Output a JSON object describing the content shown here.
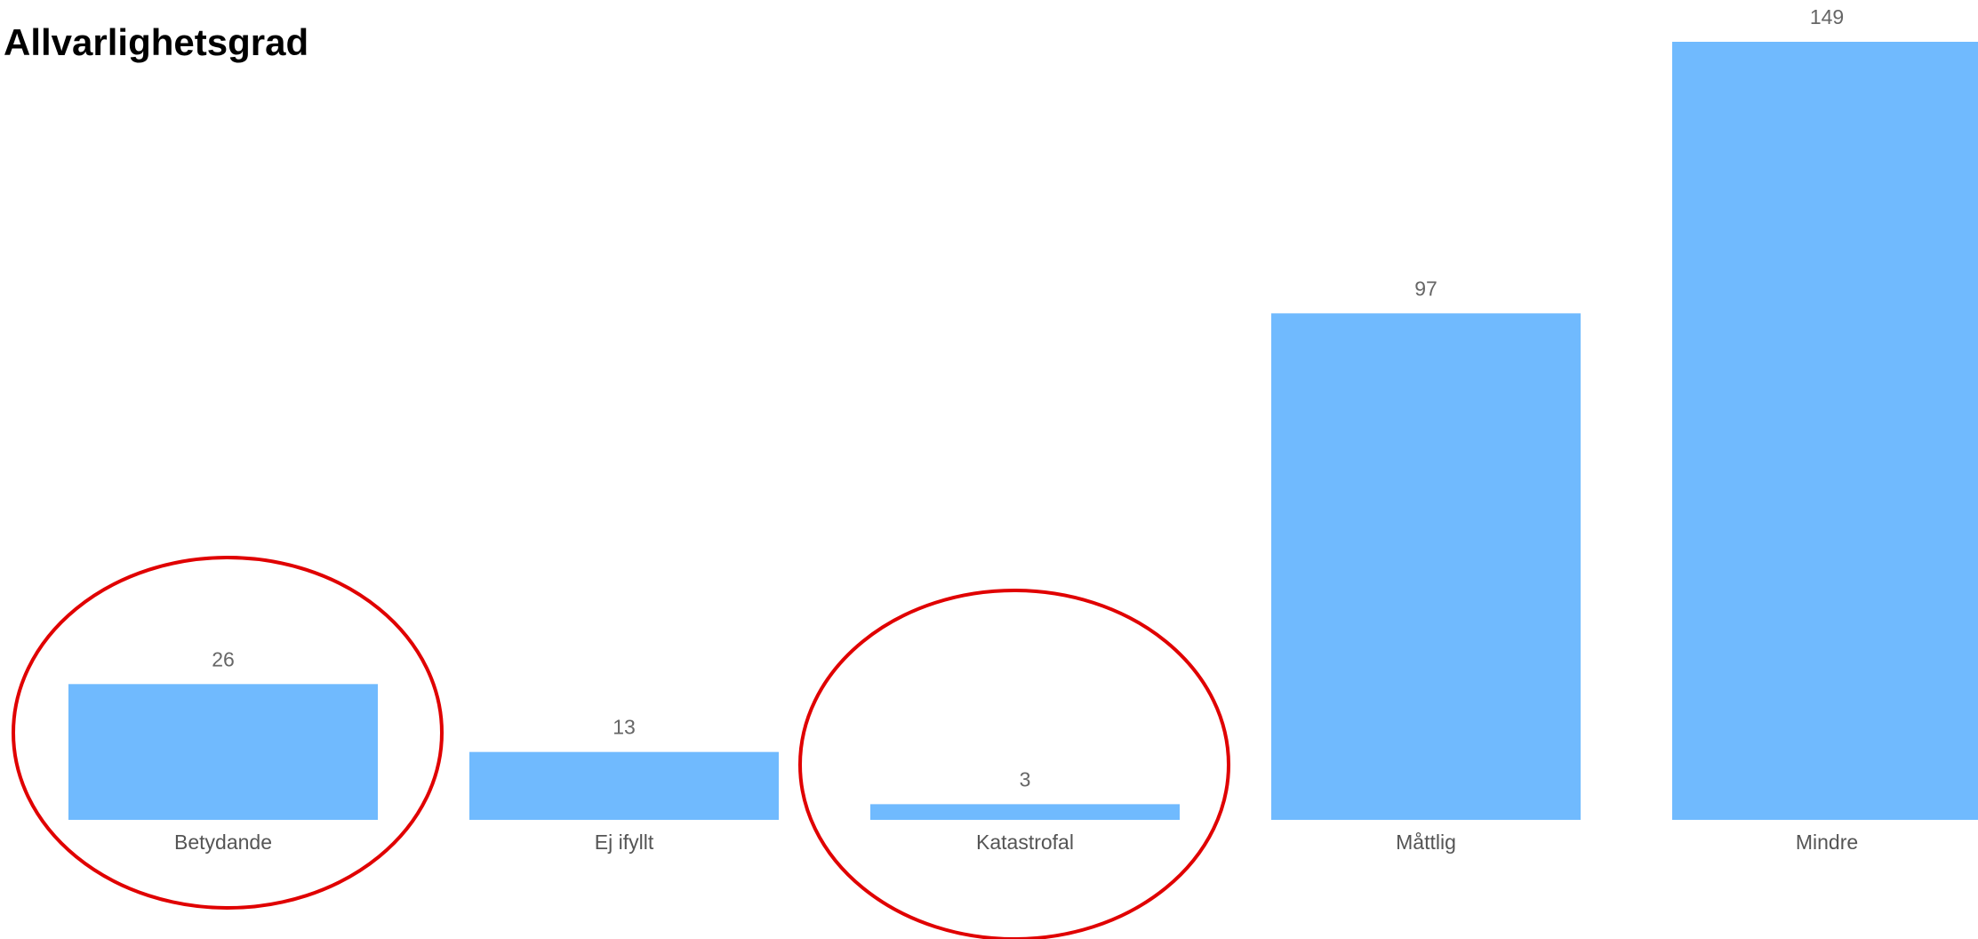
{
  "chart_data": {
    "type": "bar",
    "title": "Allvarlighetsgrad",
    "categories": [
      "Betydande",
      "Ej ifyllt",
      "Katastrofal",
      "Måttlig",
      "Mindre"
    ],
    "values": [
      26,
      13,
      3,
      97,
      149
    ],
    "data_labels": [
      "26",
      "13",
      "3",
      "97",
      "149"
    ],
    "ylim": [
      0,
      149
    ],
    "grid": false,
    "legend": "none",
    "bar_color": "#70BAFE",
    "highlighted_categories": [
      "Betydande",
      "Katastrofal"
    ],
    "highlight_color": "#E00000"
  }
}
